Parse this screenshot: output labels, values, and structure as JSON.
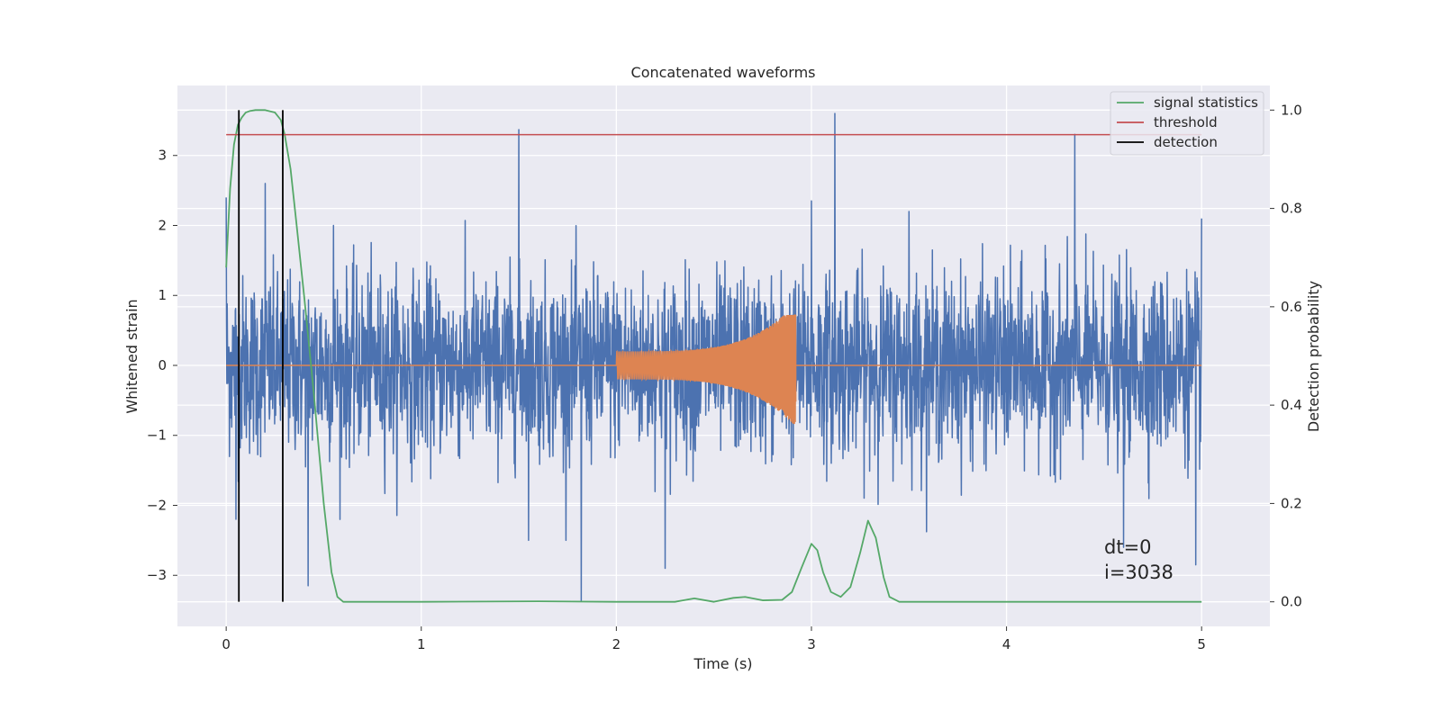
{
  "chart_data": {
    "type": "line",
    "title": "Concatenated waveforms",
    "xlabel": "Time (s)",
    "ylabel": "Whitened strain",
    "y2label": "Detection probability",
    "xlim": [
      -0.25,
      5.35
    ],
    "ylim": [
      -3.73,
      4.0
    ],
    "y2lim": [
      -0.05,
      1.05
    ],
    "xticks": [
      0,
      1,
      2,
      3,
      4,
      5
    ],
    "yticks": [
      -3,
      -2,
      -1,
      0,
      1,
      2,
      3
    ],
    "y2ticks": [
      0.0,
      0.2,
      0.4,
      0.6,
      0.8,
      1.0
    ],
    "xtick_labels": [
      "0",
      "1",
      "2",
      "3",
      "4",
      "5"
    ],
    "ytick_labels": [
      "−3",
      "−2",
      "−1",
      "0",
      "1",
      "2",
      "3"
    ],
    "y2tick_labels": [
      "0.0",
      "0.2",
      "0.4",
      "0.6",
      "0.8",
      "1.0"
    ],
    "grid": true,
    "legend_position": "top-right",
    "colors": {
      "background": "#eaeaf2",
      "noise": "#4c72b0",
      "injection": "#dd8452",
      "statistics": "#55a868",
      "threshold": "#c44e52",
      "detection": "#000000"
    },
    "series": [
      {
        "name": "",
        "axis": "left",
        "kind": "noise",
        "x_range": [
          0,
          5
        ],
        "typical_amplitude": 0.55,
        "spike_values": [
          [
            0.0,
            2.4
          ],
          [
            0.05,
            -2.2
          ],
          [
            0.2,
            2.6
          ],
          [
            0.42,
            -3.15
          ],
          [
            0.55,
            2.0
          ],
          [
            1.5,
            3.37
          ],
          [
            1.55,
            -2.5
          ],
          [
            1.82,
            -3.37
          ],
          [
            2.25,
            -2.9
          ],
          [
            3.0,
            2.35
          ],
          [
            3.12,
            3.6
          ],
          [
            3.5,
            2.2
          ],
          [
            4.35,
            3.3
          ],
          [
            4.6,
            -2.6
          ],
          [
            4.97,
            -2.85
          ],
          [
            5.0,
            2.1
          ]
        ]
      },
      {
        "name": "",
        "axis": "left",
        "kind": "chirp",
        "x_range": [
          2.0,
          2.92
        ],
        "amplitude_start": 0.2,
        "amplitude_peak_pos": 0.72,
        "amplitude_peak_neg": -0.88,
        "baseline": 0
      },
      {
        "name": "signal statistics",
        "axis": "right",
        "x": [
          0.0,
          0.02,
          0.04,
          0.06,
          0.08,
          0.1,
          0.12,
          0.15,
          0.2,
          0.25,
          0.28,
          0.3,
          0.33,
          0.36,
          0.4,
          0.45,
          0.5,
          0.54,
          0.57,
          0.6,
          1.0,
          1.6,
          2.0,
          2.3,
          2.4,
          2.5,
          2.6,
          2.66,
          2.75,
          2.85,
          2.9,
          2.95,
          3.0,
          3.03,
          3.06,
          3.1,
          3.15,
          3.2,
          3.25,
          3.29,
          3.33,
          3.37,
          3.4,
          3.45,
          3.6,
          5.0
        ],
        "values": [
          0.68,
          0.84,
          0.93,
          0.97,
          0.985,
          0.995,
          0.998,
          1.0,
          1.0,
          0.995,
          0.98,
          0.95,
          0.88,
          0.77,
          0.62,
          0.42,
          0.2,
          0.06,
          0.01,
          0.0,
          0.0,
          0.001,
          0.0,
          0.0,
          0.007,
          0.0,
          0.008,
          0.01,
          0.003,
          0.004,
          0.02,
          0.07,
          0.118,
          0.105,
          0.06,
          0.02,
          0.01,
          0.03,
          0.1,
          0.165,
          0.13,
          0.05,
          0.01,
          0.0,
          0.0,
          0.0
        ]
      },
      {
        "name": "threshold",
        "axis": "right",
        "x": [
          0.0,
          5.0
        ],
        "values": [
          0.95,
          0.95
        ]
      },
      {
        "name": "detection",
        "axis": "right",
        "kind": "vlines",
        "x": [
          0.065,
          0.29
        ],
        "y_range": [
          0.0,
          1.0
        ]
      }
    ],
    "annotations": [
      "dt=0",
      "i=3038"
    ],
    "annotation_position": [
      4.5,
      -3.0
    ]
  }
}
